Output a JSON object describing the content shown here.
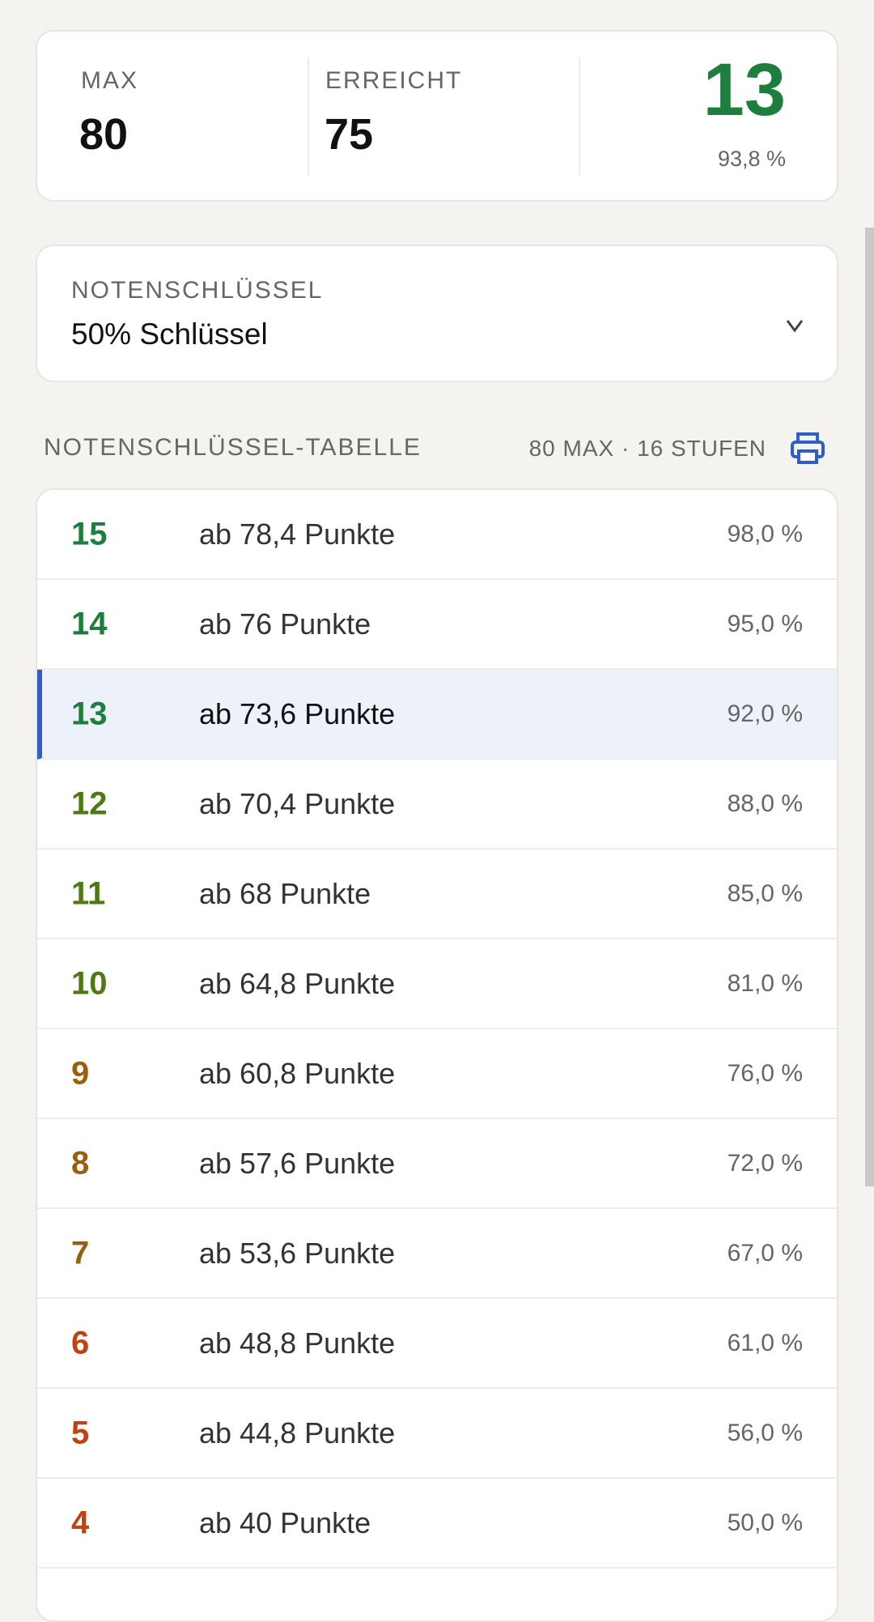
{
  "summary": {
    "max_label": "MAX",
    "max_value": "80",
    "reached_label": "ERREICHT",
    "reached_value": "75",
    "grade": "13",
    "percent": "93,8 %"
  },
  "key_select": {
    "label": "NOTENSCHLÜSSEL",
    "value": "50% Schlüssel"
  },
  "table": {
    "title": "NOTENSCHLÜSSEL-TABELLE",
    "meta": "80 MAX · 16 STUFEN",
    "rows": [
      {
        "grade": "15",
        "text": "ab 78,4 Punkte",
        "percent": "98,0 %",
        "color": "#1e7e3e"
      },
      {
        "grade": "14",
        "text": "ab 76 Punkte",
        "percent": "95,0 %",
        "color": "#1e7e3e"
      },
      {
        "grade": "13",
        "text": "ab 73,6 Punkte",
        "percent": "92,0 %",
        "color": "#1e7e3e"
      },
      {
        "grade": "12",
        "text": "ab 70,4 Punkte",
        "percent": "88,0 %",
        "color": "#4d7a12"
      },
      {
        "grade": "11",
        "text": "ab 68 Punkte",
        "percent": "85,0 %",
        "color": "#4d7a12"
      },
      {
        "grade": "10",
        "text": "ab 64,8 Punkte",
        "percent": "81,0 %",
        "color": "#4d7a12"
      },
      {
        "grade": "9",
        "text": "ab 60,8 Punkte",
        "percent": "76,0 %",
        "color": "#9a5f0c"
      },
      {
        "grade": "8",
        "text": "ab 57,6 Punkte",
        "percent": "72,0 %",
        "color": "#9a5f0c"
      },
      {
        "grade": "7",
        "text": "ab 53,6 Punkte",
        "percent": "67,0 %",
        "color": "#9a5f0c"
      },
      {
        "grade": "6",
        "text": "ab 48,8 Punkte",
        "percent": "61,0 %",
        "color": "#c0430f"
      },
      {
        "grade": "5",
        "text": "ab 44,8 Punkte",
        "percent": "56,0 %",
        "color": "#c0430f"
      },
      {
        "grade": "4",
        "text": "ab 40 Punkte",
        "percent": "50,0 %",
        "color": "#c0430f"
      }
    ]
  }
}
